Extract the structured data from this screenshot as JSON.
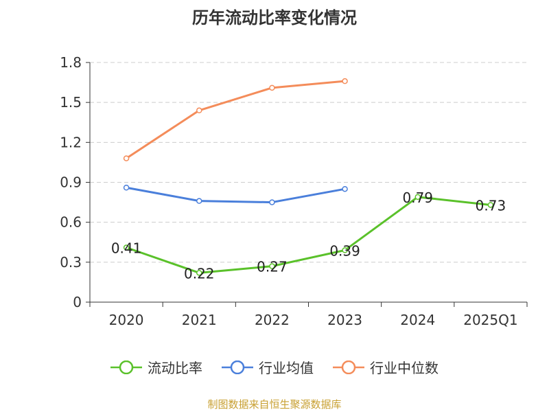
{
  "title": "历年流动比率变化情况",
  "source": "制图数据来自恒生聚源数据库",
  "colors": {
    "current_ratio": "#5ac12a",
    "industry_avg": "#4a7fdb",
    "industry_median": "#f48c5a",
    "grid": "#cccccc",
    "axis": "#333333"
  },
  "chart_data": {
    "type": "line",
    "title": "历年流动比率变化情况",
    "categories": [
      "2020",
      "2021",
      "2022",
      "2023",
      "2024",
      "2025Q1"
    ],
    "ylim": [
      0,
      1.8
    ],
    "yticks": [
      "0",
      "0.3",
      "0.6",
      "0.9",
      "1.2",
      "1.5",
      "1.8"
    ],
    "grid": true,
    "legend_position": "bottom",
    "series": [
      {
        "name": "流动比率",
        "values": [
          0.41,
          0.22,
          0.27,
          0.39,
          0.79,
          0.73
        ],
        "labels": [
          "0.41",
          "0.22",
          "0.27",
          "0.39",
          "0.79",
          "0.73"
        ]
      },
      {
        "name": "行业均值",
        "values": [
          0.86,
          0.76,
          0.75,
          0.85,
          null,
          null
        ]
      },
      {
        "name": "行业中位数",
        "values": [
          1.08,
          1.44,
          1.61,
          1.66,
          null,
          null
        ]
      }
    ]
  }
}
